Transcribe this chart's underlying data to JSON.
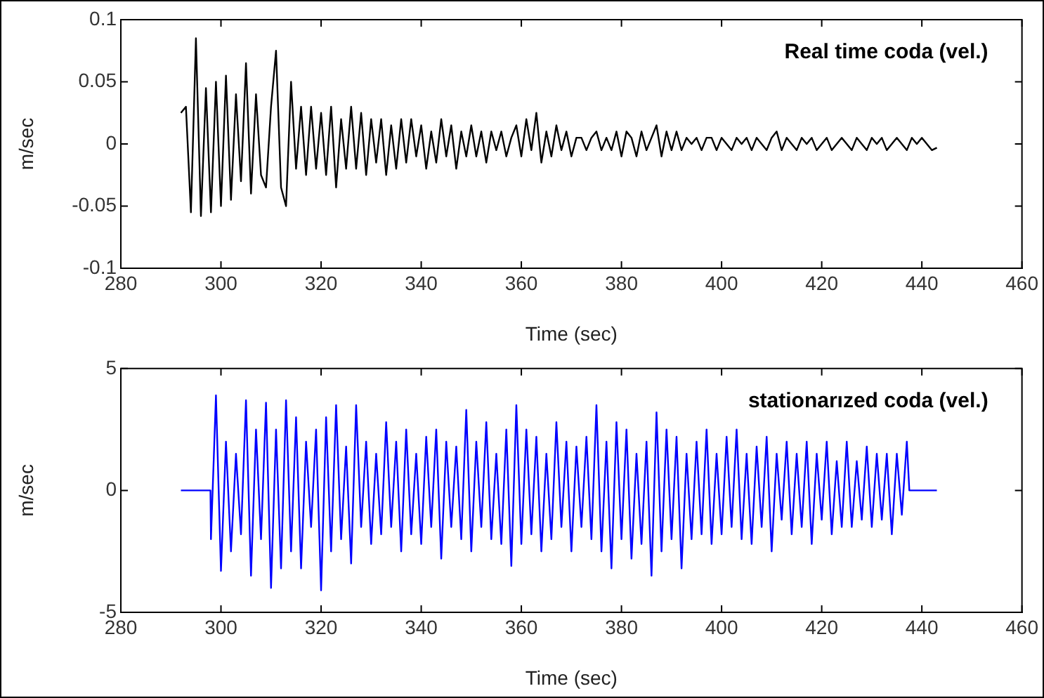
{
  "chart_data": [
    {
      "type": "line",
      "xlabel": "Time (sec)",
      "ylabel": "m/sec",
      "annotations": [
        "Real time coda (vel.)"
      ],
      "xlim": [
        280,
        460
      ],
      "xticks": [
        280,
        300,
        320,
        340,
        360,
        380,
        400,
        420,
        440,
        460
      ],
      "ylim": [
        -0.1,
        0.1
      ],
      "yticks": [
        -0.1,
        -0.05,
        0,
        0.05,
        0.1
      ],
      "series": [
        {
          "color": "#000000",
          "x": [
            292,
            293,
            294,
            295,
            296,
            297,
            298,
            299,
            300,
            301,
            302,
            303,
            304,
            305,
            306,
            307,
            308,
            309,
            310,
            311,
            312,
            313,
            314,
            315,
            316,
            317,
            318,
            319,
            320,
            321,
            322,
            323,
            324,
            325,
            326,
            327,
            328,
            329,
            330,
            331,
            332,
            333,
            334,
            335,
            336,
            337,
            338,
            339,
            340,
            341,
            342,
            343,
            344,
            345,
            346,
            347,
            348,
            349,
            350,
            351,
            352,
            353,
            354,
            355,
            356,
            357,
            358,
            359,
            360,
            361,
            362,
            363,
            364,
            365,
            366,
            367,
            368,
            369,
            370,
            371,
            372,
            373,
            374,
            375,
            376,
            377,
            378,
            379,
            380,
            381,
            382,
            383,
            384,
            385,
            386,
            387,
            388,
            389,
            390,
            391,
            392,
            393,
            394,
            395,
            396,
            397,
            398,
            399,
            400,
            401,
            402,
            403,
            404,
            405,
            406,
            407,
            408,
            409,
            410,
            411,
            412,
            413,
            414,
            415,
            416,
            417,
            418,
            419,
            420,
            421,
            422,
            423,
            424,
            425,
            426,
            427,
            428,
            429,
            430,
            431,
            432,
            433,
            434,
            435,
            436,
            437,
            438,
            439,
            440,
            441,
            442,
            443
          ],
          "values": [
            0.025,
            0.03,
            -0.055,
            0.085,
            -0.058,
            0.045,
            -0.055,
            0.05,
            -0.05,
            0.055,
            -0.045,
            0.04,
            -0.03,
            0.065,
            -0.04,
            0.04,
            -0.025,
            -0.035,
            0.03,
            0.075,
            -0.035,
            -0.05,
            0.05,
            -0.02,
            0.03,
            -0.025,
            0.03,
            -0.02,
            0.025,
            -0.025,
            0.03,
            -0.035,
            0.02,
            -0.02,
            0.03,
            -0.02,
            0.025,
            -0.025,
            0.02,
            -0.015,
            0.02,
            -0.025,
            0.015,
            -0.02,
            0.02,
            -0.015,
            0.02,
            -0.01,
            0.015,
            -0.02,
            0.01,
            -0.015,
            0.02,
            -0.01,
            0.015,
            -0.02,
            0.01,
            -0.01,
            0.015,
            -0.01,
            0.01,
            -0.015,
            0.01,
            -0.005,
            0.01,
            -0.01,
            0.005,
            0.015,
            -0.01,
            0.02,
            -0.005,
            0.025,
            -0.015,
            0.01,
            -0.01,
            0.015,
            -0.005,
            0.01,
            -0.01,
            0.005,
            0.005,
            -0.005,
            0.005,
            0.01,
            -0.005,
            0.005,
            -0.005,
            0.01,
            -0.01,
            0.01,
            0.005,
            -0.01,
            0.01,
            -0.005,
            0.005,
            0.015,
            -0.01,
            0.01,
            -0.005,
            0.01,
            -0.005,
            0.005,
            0,
            0.005,
            -0.005,
            0.005,
            0.005,
            -0.005,
            0.005,
            0,
            -0.005,
            0.005,
            0,
            0.005,
            -0.005,
            0.005,
            0,
            -0.005,
            0.005,
            0.01,
            -0.005,
            0.005,
            0,
            -0.005,
            0.005,
            0,
            0.005,
            -0.005,
            0,
            0.005,
            -0.005,
            0,
            0.005,
            0,
            -0.005,
            0.005,
            0,
            -0.005,
            0.005,
            0,
            0.005,
            -0.005,
            0,
            0.005,
            0,
            -0.005,
            0.005,
            0,
            0.005,
            0,
            -0.005,
            -0.003
          ]
        }
      ]
    },
    {
      "type": "line",
      "xlabel": "Time (sec)",
      "ylabel": "m/sec",
      "annotations": [
        "stationarızed coda (vel.)"
      ],
      "xlim": [
        280,
        460
      ],
      "xticks": [
        280,
        300,
        320,
        340,
        360,
        380,
        400,
        420,
        440,
        460
      ],
      "ylim": [
        -5,
        5
      ],
      "yticks": [
        -5,
        0,
        5
      ],
      "series": [
        {
          "color": "#0000ff",
          "x": [
            292,
            297.9,
            298,
            299,
            300,
            301,
            302,
            303,
            304,
            305,
            306,
            307,
            308,
            309,
            310,
            311,
            312,
            313,
            314,
            315,
            316,
            317,
            318,
            319,
            320,
            321,
            322,
            323,
            324,
            325,
            326,
            327,
            328,
            329,
            330,
            331,
            332,
            333,
            334,
            335,
            336,
            337,
            338,
            339,
            340,
            341,
            342,
            343,
            344,
            345,
            346,
            347,
            348,
            349,
            350,
            351,
            352,
            353,
            354,
            355,
            356,
            357,
            358,
            359,
            360,
            361,
            362,
            363,
            364,
            365,
            366,
            367,
            368,
            369,
            370,
            371,
            372,
            373,
            374,
            375,
            376,
            377,
            378,
            379,
            380,
            381,
            382,
            383,
            384,
            385,
            386,
            387,
            388,
            389,
            390,
            391,
            392,
            393,
            394,
            395,
            396,
            397,
            398,
            399,
            400,
            401,
            402,
            403,
            404,
            405,
            406,
            407,
            408,
            409,
            410,
            411,
            412,
            413,
            414,
            415,
            416,
            417,
            418,
            419,
            420,
            421,
            422,
            423,
            424,
            425,
            426,
            427,
            428,
            429,
            430,
            431,
            432,
            433,
            434,
            435,
            436,
            437,
            437.5,
            443
          ],
          "values": [
            0,
            0,
            -2,
            3.9,
            -3.3,
            2,
            -2.5,
            1.5,
            -1.8,
            3.7,
            -3.5,
            2.5,
            -2,
            3.6,
            -4,
            2.5,
            -3.2,
            3.7,
            -2.5,
            3,
            -3.2,
            2,
            -1.5,
            2.5,
            -4.1,
            3,
            -2.5,
            3.5,
            -2,
            1.8,
            -3,
            3.5,
            -1.5,
            2,
            -2.2,
            1.5,
            -1.8,
            2.8,
            -1.5,
            2,
            -2.5,
            2.5,
            -1.8,
            1.5,
            -2.2,
            2.2,
            -1.5,
            2.5,
            -2.8,
            2,
            -1.5,
            1.8,
            -2,
            3.3,
            -2.5,
            2,
            -1.5,
            2.8,
            -2,
            1.5,
            -2.2,
            2.5,
            -3.1,
            3.5,
            -2.2,
            2.5,
            -1.8,
            2.2,
            -2.5,
            1.5,
            -2,
            2.8,
            -1.5,
            2,
            -2.5,
            1.8,
            -1.5,
            2.2,
            -2,
            3.5,
            -2.5,
            2,
            -3.2,
            2.8,
            -2,
            2.5,
            -2.8,
            1.5,
            -2.2,
            2,
            -3.5,
            3.2,
            -2.5,
            2.5,
            -2,
            2.2,
            -3.2,
            1.5,
            -2,
            2,
            -1.8,
            2.5,
            -2.2,
            1.5,
            -1.8,
            2.2,
            -1.5,
            2.5,
            -2,
            1.5,
            -2.2,
            1.8,
            -1.5,
            2.2,
            -2.5,
            1.5,
            -1.2,
            2,
            -1.8,
            1.5,
            -1.5,
            2,
            -2.2,
            1.5,
            -1.2,
            2,
            -1.8,
            1.2,
            -1.5,
            2,
            -1.5,
            1.2,
            -1.2,
            1.8,
            -1.5,
            1.5,
            -1.2,
            1.5,
            -1.8,
            1.5,
            -1,
            2,
            0,
            0
          ]
        }
      ]
    }
  ]
}
